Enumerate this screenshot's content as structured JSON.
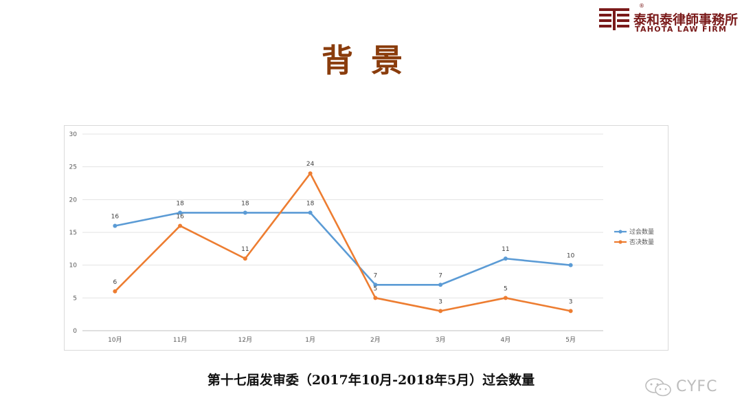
{
  "brand": {
    "name_cn": "泰和泰律師事務所",
    "name_en": "TAHOTA LAW FIRM",
    "reg_mark": "®",
    "color": "#7a1a1a"
  },
  "page": {
    "title": "背景",
    "caption": "第十七届发审委（2017年10月-2018年5月）过会数量"
  },
  "watermark": {
    "text": "CYFC",
    "icon": "wechat-icon"
  },
  "chart_data": {
    "type": "line",
    "categories": [
      "10月",
      "11月",
      "12月",
      "1月",
      "2月",
      "3月",
      "4月",
      "5月"
    ],
    "ylim": [
      0,
      30
    ],
    "yticks": [
      0,
      5,
      10,
      15,
      20,
      25,
      30
    ],
    "grid": true,
    "legend_position": "right",
    "series": [
      {
        "name": "过会数量",
        "color": "#5b9bd5",
        "values": [
          16,
          18,
          18,
          18,
          7,
          7,
          11,
          10
        ]
      },
      {
        "name": "否决数量",
        "color": "#ed7d31",
        "values": [
          6,
          16,
          11,
          24,
          5,
          3,
          5,
          3
        ]
      }
    ]
  }
}
